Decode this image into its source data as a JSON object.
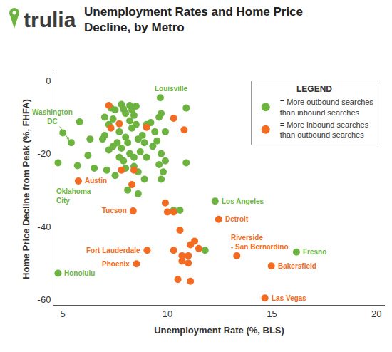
{
  "chart_data": {
    "type": "scatter",
    "logo_text": "trulia",
    "title": "Unemployment Rates and Home Price Decline, by Metro",
    "xlabel": "Unemployment Rate (%, BLS)",
    "ylabel": "Home Price Decline from Peak (%, FHFA)",
    "xlim": [
      4.55,
      20.4
    ],
    "ylim": [
      -61.5,
      2
    ],
    "xticks": [
      5,
      10,
      15,
      20
    ],
    "yticks": [
      0,
      -20,
      -40,
      -60
    ],
    "grid": false,
    "legend": "top right",
    "legend_title": "LEGEND",
    "series": [
      {
        "name": "= More outbound searches than inbound searches",
        "color": "#6cb33f",
        "marker": "circle",
        "x": [
          9.66,
          5.4,
          4.77,
          12.28,
          4.77,
          16.17,
          5.0,
          5.8,
          6.2,
          6.5,
          5.7,
          6.3,
          6.9,
          7.0,
          7.0,
          7.2,
          7.3,
          7.4,
          7.5,
          7.6,
          7.7,
          7.8,
          7.9,
          8.0,
          8.0,
          8.1,
          8.2,
          8.2,
          8.3,
          8.3,
          8.4,
          8.5,
          8.5,
          8.6,
          7.2,
          7.4,
          7.7,
          7.9,
          7.8,
          8.0,
          8.2,
          8.4,
          8.4,
          8.6,
          8.6,
          8.7,
          8.8,
          8.9,
          9.0,
          9.0,
          9.2,
          9.3,
          9.4,
          9.5,
          9.6,
          9.6,
          9.7,
          9.8,
          9.9,
          9.7,
          10.9,
          10.9,
          9.9,
          7.1,
          7.5,
          10.3,
          10.6,
          11.8,
          9.7,
          8.9,
          8.1
        ],
        "values": [
          -4.7,
          -17,
          -22.5,
          -33,
          -52.8,
          -47,
          -14.3,
          -11.3,
          -20.5,
          -24,
          -23.3,
          -16,
          -16,
          -15,
          -10,
          -12,
          -7.5,
          -10.5,
          -8,
          -17,
          -14,
          -6.5,
          -7.8,
          -9,
          -15.5,
          -17,
          -6.8,
          -11,
          -8,
          -13,
          -9.5,
          -7,
          -12,
          -16,
          -19,
          -18,
          -21,
          -22,
          -18.5,
          -24,
          -20,
          -21,
          -23.5,
          -25,
          -31,
          -19.5,
          -15,
          -17,
          -12,
          -21,
          -11.5,
          -18,
          -14,
          -16.5,
          -10,
          -23,
          -20,
          -25,
          -22,
          -27,
          -7.5,
          -22.5,
          -14,
          -24.5,
          -26,
          -35.5,
          -35.5,
          -46.5,
          -9,
          -27,
          -30
        ]
      },
      {
        "name": "= More inbound searches than outbound searches",
        "color": "#f26b21",
        "marker": "circle",
        "x": [
          5.74,
          8.36,
          12.45,
          9.03,
          8.52,
          13.32,
          14.97,
          14.66,
          7.2,
          7.7,
          7.3,
          7.8,
          8.4,
          8.3,
          9.0,
          10.3,
          10.8,
          9.9,
          10.0,
          10.3,
          10.6,
          10.3,
          10.7,
          10.7,
          11.0,
          11.1,
          11.3,
          11.5,
          11.0,
          11.1,
          10.5
        ],
        "values": [
          -27.5,
          -35.7,
          -38,
          -46.5,
          -50.2,
          -48,
          -50.8,
          -59.6,
          -6.8,
          -11.8,
          -13,
          -24.5,
          -24.5,
          -28.5,
          -12.8,
          -10.3,
          -13.5,
          -33.5,
          -36,
          -36,
          -41,
          -46.5,
          -48,
          -49.5,
          -48,
          -45,
          -44,
          -46,
          -50,
          -55,
          -54.5
        ]
      }
    ],
    "annotations": [
      {
        "text": "Louisville",
        "x": 9.66,
        "y": -4.7,
        "position": "above_right",
        "color": "#6cb33f"
      },
      {
        "text": [
          "Washington",
          "DC"
        ],
        "x": 5.4,
        "y": -17,
        "position": "arrow",
        "color": "#6cb33f"
      },
      {
        "text": [
          "Oklahoma",
          "City"
        ],
        "x": 4.77,
        "y": -22.5,
        "position": "below",
        "color": "#6cb33f"
      },
      {
        "text": "Austin",
        "x": 5.74,
        "y": -27.5,
        "position": "right",
        "color": "#f26b21"
      },
      {
        "text": "Tucson",
        "x": 8.36,
        "y": -35.7,
        "position": "left",
        "color": "#f26b21"
      },
      {
        "text": "Los Angeles",
        "x": 12.28,
        "y": -33,
        "position": "right",
        "color": "#6cb33f"
      },
      {
        "text": "Detroit",
        "x": 12.45,
        "y": -38,
        "position": "right",
        "color": "#f26b21"
      },
      {
        "text": "Fort Lauderdale",
        "x": 9.03,
        "y": -46.5,
        "position": "left",
        "color": "#f26b21"
      },
      {
        "text": "Phoenix",
        "x": 8.52,
        "y": -50.2,
        "position": "left",
        "color": "#f26b21"
      },
      {
        "text": "Honolulu",
        "x": 4.77,
        "y": -52.8,
        "position": "right",
        "color": "#6cb33f"
      },
      {
        "text": [
          "Riverside",
          "- San Bernardino"
        ],
        "x": 13.32,
        "y": -48,
        "position": "above_right",
        "color": "#f26b21"
      },
      {
        "text": "Fresno",
        "x": 16.17,
        "y": -47,
        "position": "right",
        "color": "#6cb33f"
      },
      {
        "text": "Bakersfield",
        "x": 14.97,
        "y": -50.8,
        "position": "right",
        "color": "#f26b21"
      },
      {
        "text": "Las Vegas",
        "x": 14.66,
        "y": -59.6,
        "position": "right",
        "color": "#f26b21"
      }
    ]
  }
}
